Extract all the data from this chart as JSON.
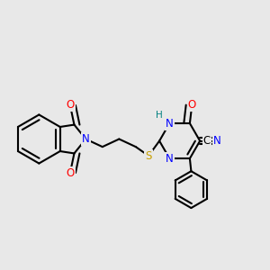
{
  "background_color": "#e8e8e8",
  "bond_color": "#000000",
  "atom_colors": {
    "N": "#0000ff",
    "O": "#ff0000",
    "S": "#c8a000",
    "C": "#000000",
    "H_label": "#008080"
  },
  "line_width": 1.5,
  "font_size": 8.5,
  "title": ""
}
